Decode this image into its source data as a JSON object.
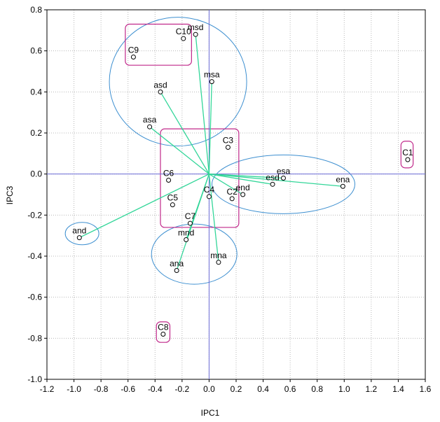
{
  "chart_data": {
    "type": "scatter",
    "title": "",
    "xlabel": "IPC1",
    "ylabel": "IPC3",
    "xlim": [
      -1.2,
      1.6
    ],
    "ylim": [
      -1.0,
      0.8
    ],
    "xticks": [
      "-1.2",
      "-1.0",
      "-0.8",
      "-0.6",
      "-0.4",
      "-0.2",
      "0.0",
      "0.2",
      "0.4",
      "0.6",
      "0.8",
      "1.0",
      "1.2",
      "1.4",
      "1.6"
    ],
    "yticks": [
      "0.8",
      "0.6",
      "0.4",
      "0.2",
      "0.0",
      "-0.2",
      "-0.4",
      "-0.6",
      "-0.8",
      "-1.0"
    ],
    "grid": true,
    "colors": {
      "vectors": "#33d699",
      "circles": "#3d8fd0",
      "boxes": "#c0288a",
      "reference_lines": "#6b6bd6"
    },
    "variables": [
      {
        "name": "asd",
        "x": -0.36,
        "y": 0.4
      },
      {
        "name": "asa",
        "x": -0.44,
        "y": 0.23
      },
      {
        "name": "msd",
        "x": -0.1,
        "y": 0.68
      },
      {
        "name": "msa",
        "x": 0.02,
        "y": 0.45
      },
      {
        "name": "esa",
        "x": 0.55,
        "y": -0.02
      },
      {
        "name": "esd",
        "x": 0.47,
        "y": -0.05
      },
      {
        "name": "ena",
        "x": 0.99,
        "y": -0.06
      },
      {
        "name": "end",
        "x": 0.25,
        "y": -0.1
      },
      {
        "name": "and",
        "x": -0.96,
        "y": -0.31
      },
      {
        "name": "mnd",
        "x": -0.17,
        "y": -0.32
      },
      {
        "name": "mna",
        "x": 0.07,
        "y": -0.43
      },
      {
        "name": "ana",
        "x": -0.24,
        "y": -0.47
      }
    ],
    "cases": [
      {
        "name": "C1",
        "x": 1.47,
        "y": 0.07
      },
      {
        "name": "C2",
        "x": 0.17,
        "y": -0.12
      },
      {
        "name": "C3",
        "x": 0.14,
        "y": 0.13
      },
      {
        "name": "C4",
        "x": 0.0,
        "y": -0.11
      },
      {
        "name": "C5",
        "x": -0.27,
        "y": -0.15
      },
      {
        "name": "C6",
        "x": -0.3,
        "y": -0.03
      },
      {
        "name": "C7",
        "x": -0.14,
        "y": -0.24
      },
      {
        "name": "C8",
        "x": -0.34,
        "y": -0.78
      },
      {
        "name": "C9",
        "x": -0.56,
        "y": 0.57
      },
      {
        "name": "C10",
        "x": -0.19,
        "y": 0.66
      }
    ]
  }
}
